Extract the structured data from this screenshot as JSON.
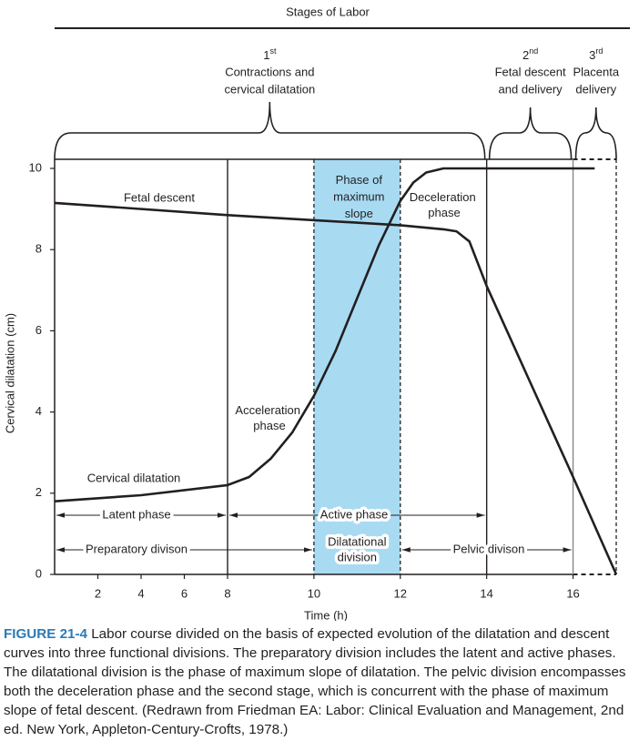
{
  "chart_data": {
    "type": "line",
    "title": "Stages of Labor",
    "stages": [
      {
        "ordinal": "1",
        "suffix": "st",
        "lines": [
          "Contractions and",
          "cervical dilatation"
        ],
        "from": 0,
        "to": 14
      },
      {
        "ordinal": "2",
        "suffix": "nd",
        "lines": [
          "Fetal descent",
          "and delivery"
        ],
        "from": 14,
        "to": 16
      },
      {
        "ordinal": "3",
        "suffix": "rd",
        "lines": [
          "Placenta",
          "delivery"
        ],
        "from": 16,
        "to": 17
      }
    ],
    "x_label": "Time (h)",
    "y_label": "Cervical dilatation (cm)",
    "xlim": [
      0,
      17
    ],
    "xticks": [
      2,
      4,
      6,
      8,
      10,
      12,
      14,
      16
    ],
    "ylim": [
      0,
      10
    ],
    "yticks": [
      0,
      2,
      4,
      6,
      8,
      10
    ],
    "highlight": {
      "from": 10,
      "to": 12,
      "color": "#a8dbf2",
      "lines": [
        "Phase of",
        "maximum",
        "slope"
      ]
    },
    "dividers": [
      {
        "x": 8,
        "style": "solid"
      },
      {
        "x": 10,
        "style": "dashed"
      },
      {
        "x": 12,
        "style": "dashed"
      },
      {
        "x": 14,
        "style": "solid"
      },
      {
        "x": 16,
        "style": "solid"
      },
      {
        "x": 17,
        "style": "dashed"
      }
    ],
    "series": [
      {
        "name": "Cervical dilatation",
        "color": "#231f20",
        "x": [
          0,
          4,
          8,
          8.5,
          9,
          9.5,
          10,
          10.5,
          11,
          11.5,
          12,
          12.3,
          12.6,
          13,
          14,
          16.5
        ],
        "values": [
          1.8,
          1.95,
          2.2,
          2.4,
          2.85,
          3.5,
          4.4,
          5.5,
          6.8,
          8.1,
          9.2,
          9.65,
          9.9,
          10,
          10,
          10
        ]
      },
      {
        "name": "Fetal descent",
        "color": "#231f20",
        "x": [
          0,
          8,
          12,
          13,
          13.3,
          13.6,
          14,
          15,
          16,
          17
        ],
        "values": [
          9.15,
          8.85,
          8.6,
          8.5,
          8.45,
          8.2,
          7.1,
          4.75,
          2.4,
          0
        ]
      }
    ],
    "annotations": {
      "acceleration": [
        "Acceleration",
        "phase"
      ],
      "deceleration": [
        "Deceleration",
        "phase"
      ]
    },
    "phase_arrows": [
      {
        "label": "Latent phase",
        "from": 0,
        "to": 8
      },
      {
        "label": "Active phase",
        "from": 8,
        "to": 14
      }
    ],
    "division_arrows": [
      {
        "label": "Preparatory divison",
        "from": 0,
        "to": 10
      },
      {
        "label": "Pelvic divison",
        "from": 12,
        "to": 16
      }
    ],
    "dilatational_division": [
      "Dilatational",
      "division"
    ],
    "caption_label": "FIGURE 21-4",
    "caption_text": "Labor course divided on the basis of expected evolution of the dilatation and descent curves into three functional divisions. The preparatory division includes the latent and active phases. The dilatational division is the phase of maximum slope of dilatation. The pelvic division encompasses both the deceleration phase and the second stage, which is concurrent with the phase of maximum slope of fetal descent. (Redrawn from Friedman EA: Labor: Clinical Evaluation and Management, 2nd ed. New York, Appleton-Century-Crofts, 1978.)"
  }
}
